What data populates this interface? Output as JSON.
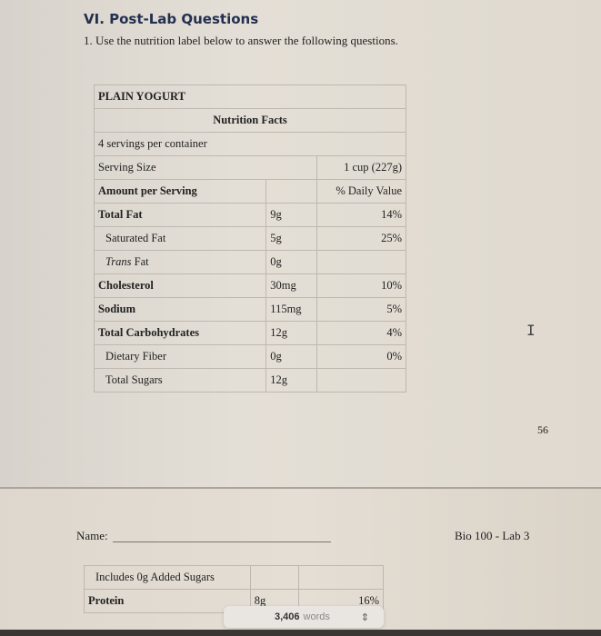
{
  "heading": "VI. Post-Lab Questions",
  "question": "1. Use the nutrition label below to answer the following questions.",
  "label": {
    "product": "PLAIN YOGURT",
    "title": "Nutrition Facts",
    "servings": "4 servings per container",
    "serving_size_label": "Serving Size",
    "serving_size_value": "1 cup (227g)",
    "amount_header": "Amount per Serving",
    "dv_header": "% Daily Value",
    "rows": [
      {
        "name": "Total Fat",
        "amount": "9g",
        "dv": "14%"
      },
      {
        "name": "Saturated Fat",
        "amount": "5g",
        "dv": "25%"
      },
      {
        "name": "Trans",
        "name_suffix": " Fat",
        "amount": "0g",
        "dv": ""
      },
      {
        "name": "Cholesterol",
        "amount": "30mg",
        "dv": "10%"
      },
      {
        "name": "Sodium",
        "amount": "115mg",
        "dv": "5%"
      },
      {
        "name": "Total Carbohydrates",
        "amount": "12g",
        "dv": "4%"
      },
      {
        "name": "Dietary Fiber",
        "amount": "0g",
        "dv": "0%"
      },
      {
        "name": "Total Sugars",
        "amount": "12g",
        "dv": ""
      }
    ],
    "continued": [
      {
        "name": "Includes 0g Added Sugars",
        "amount": "",
        "dv": ""
      },
      {
        "name": "Protein",
        "amount": "8g",
        "dv": "16%"
      }
    ]
  },
  "page_number": "56",
  "footer": {
    "name_label": "Name:",
    "course": "Bio 100 - Lab 3"
  },
  "word_count": {
    "count": "3,406",
    "unit": "words"
  }
}
